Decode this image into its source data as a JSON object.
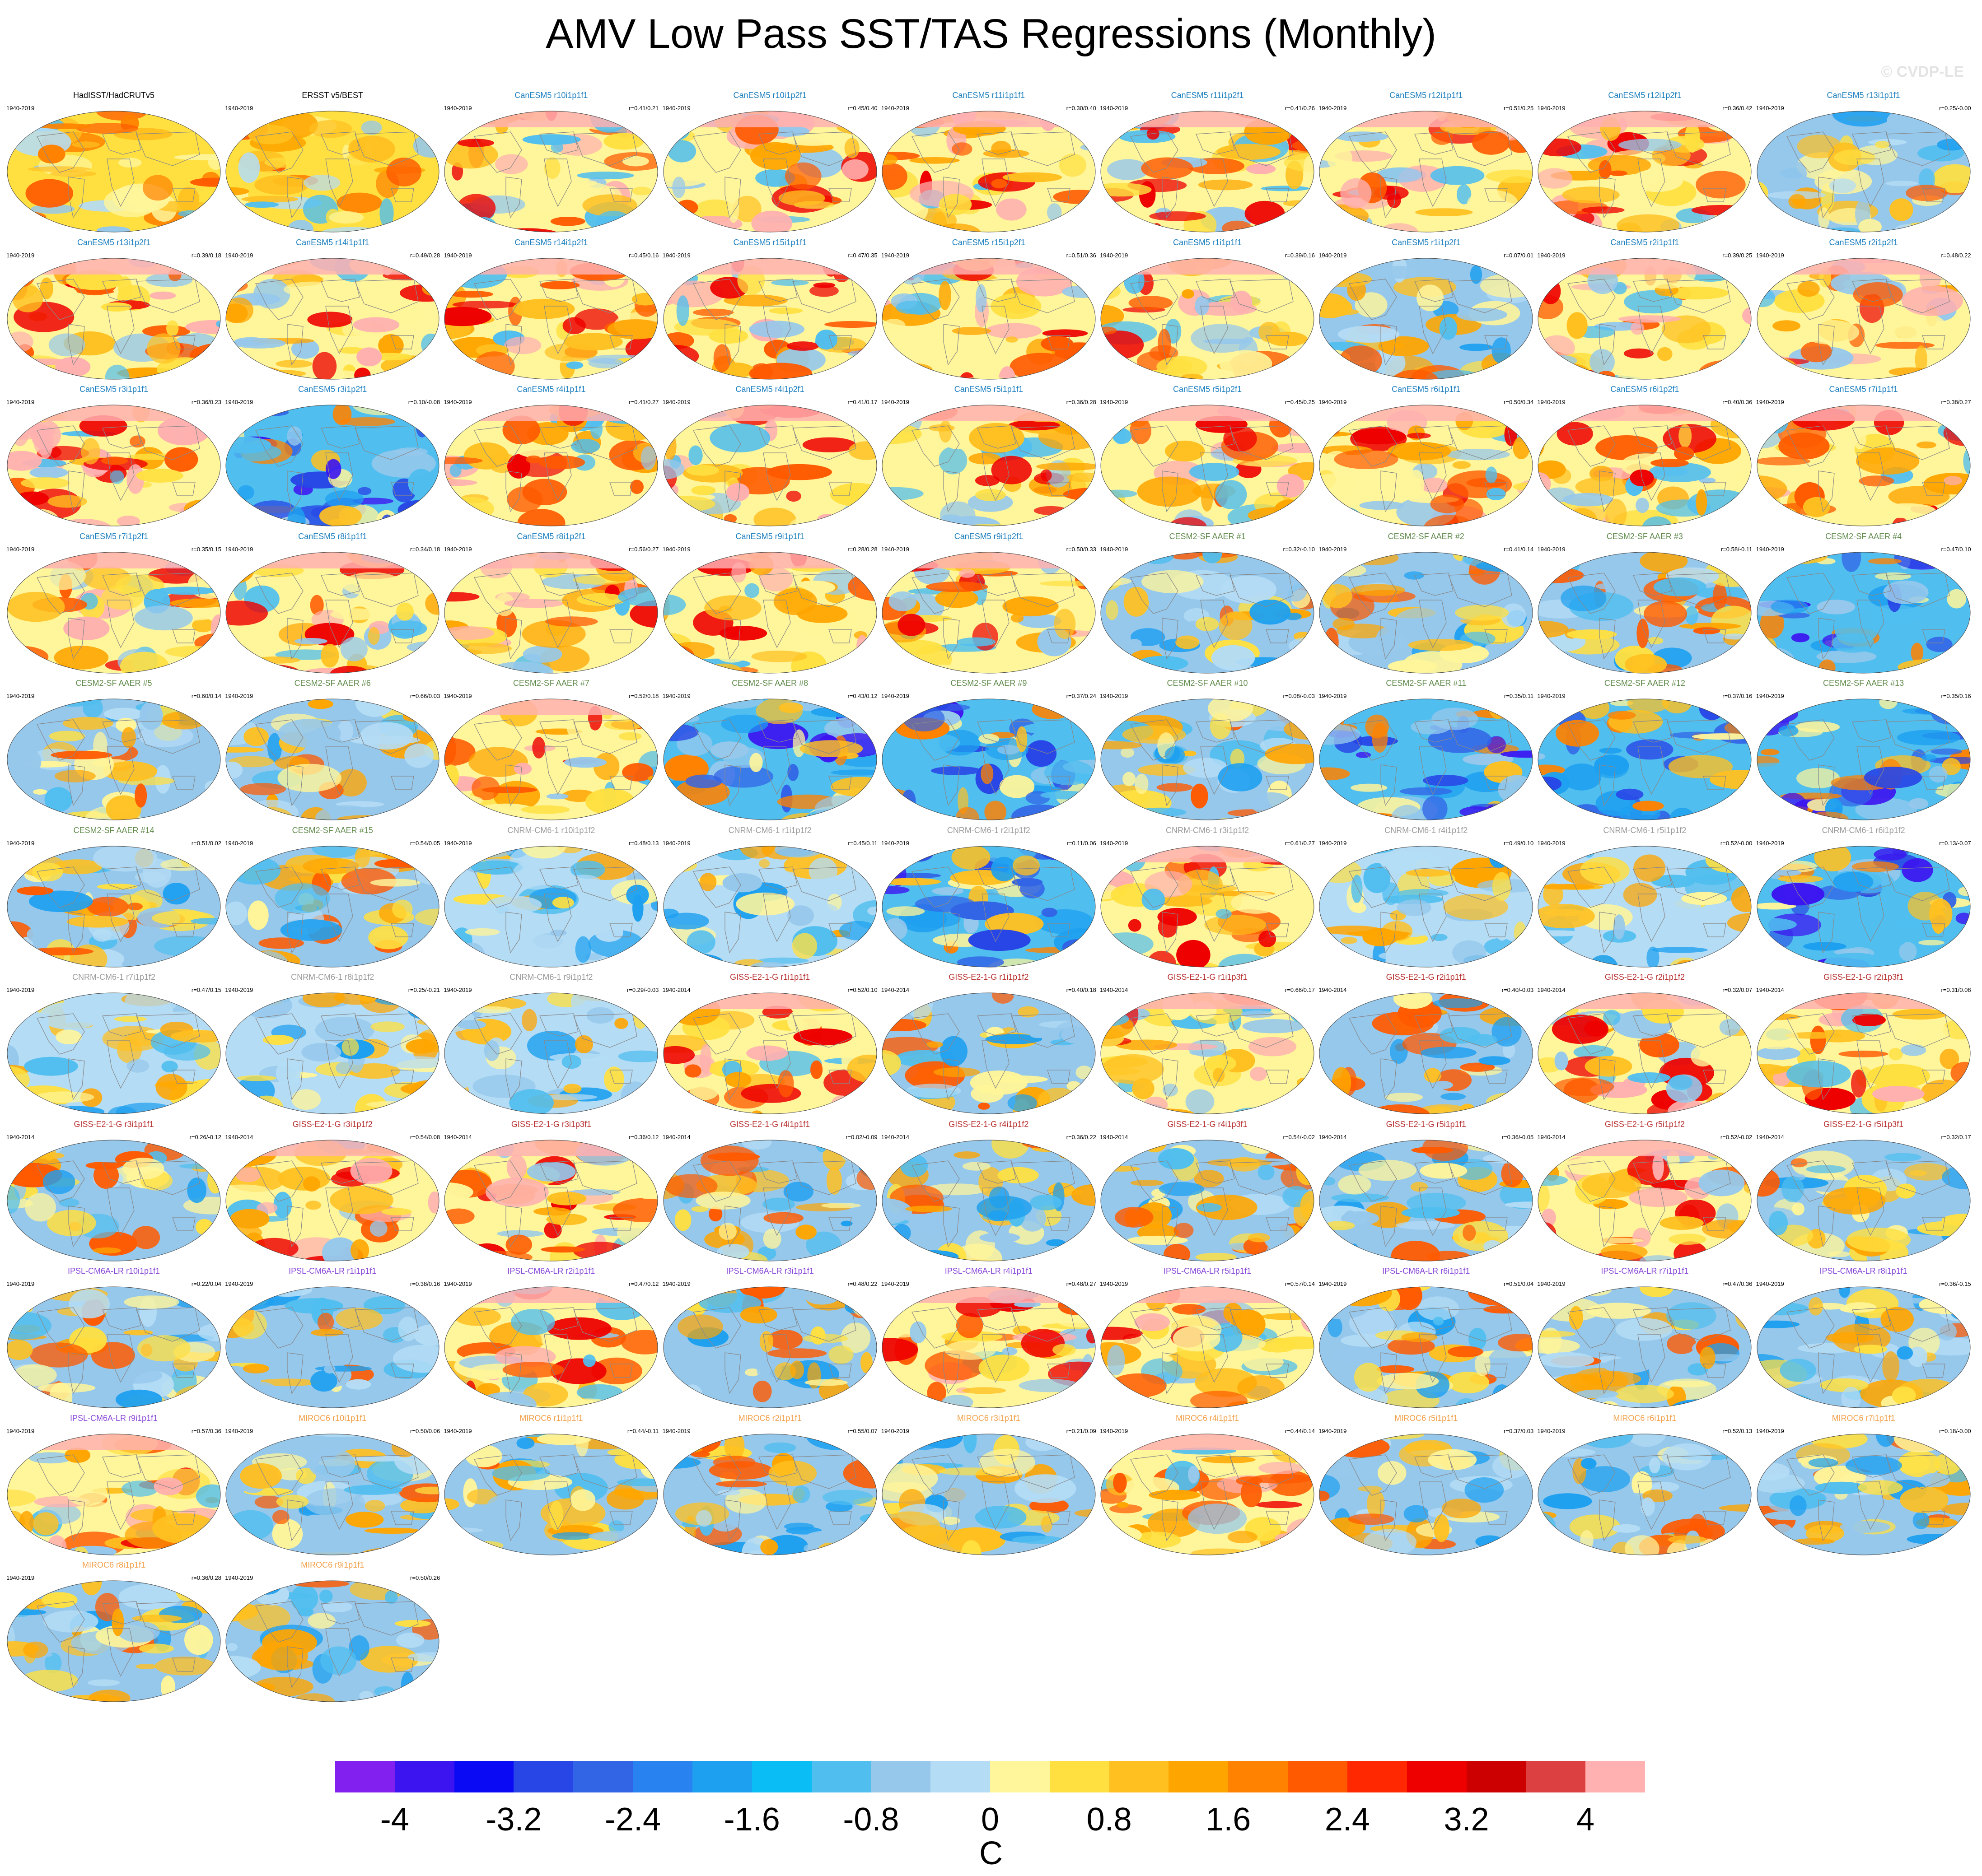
{
  "title": "AMV Low Pass SST/TAS Regressions (Monthly)",
  "watermark": "© CVDP-LE",
  "colors": {
    "obs_title": "#000000",
    "CanESM5": "#1c7fbf",
    "CESM2-SF AAER": "#5f8a4a",
    "CNRM-CM6-1": "#9a9a9a",
    "GISS-E2-1-G": "#b83030",
    "IPSL-CM6A-LR": "#8a48d8",
    "MIROC6": "#f2a04a"
  },
  "panels": [
    {
      "title": "HadISST/HadCRUTv5",
      "years": "1940-2019",
      "r": "",
      "model": "obs",
      "style": "obs"
    },
    {
      "title": "ERSST v5/BEST",
      "years": "1940-2019",
      "r": "",
      "model": "obs",
      "style": "obs"
    },
    {
      "title": "CanESM5 r10i1p1f1",
      "years": "1940-2019",
      "r": "r=0.41/0.21",
      "model": "CanESM5",
      "style": "warm"
    },
    {
      "title": "CanESM5 r10i1p2f1",
      "years": "1940-2019",
      "r": "r=0.45/0.40",
      "model": "CanESM5",
      "style": "warm"
    },
    {
      "title": "CanESM5 r11i1p1f1",
      "years": "1940-2019",
      "r": "r=0.30/0.40",
      "model": "CanESM5",
      "style": "warm"
    },
    {
      "title": "CanESM5 r11i1p2f1",
      "years": "1940-2019",
      "r": "r=0.41/0.26",
      "model": "CanESM5",
      "style": "warm"
    },
    {
      "title": "CanESM5 r12i1p1f1",
      "years": "1940-2019",
      "r": "r=0.51/0.25",
      "model": "CanESM5",
      "style": "warm"
    },
    {
      "title": "CanESM5 r12i1p2f1",
      "years": "1940-2019",
      "r": "r=0.36/0.42",
      "model": "CanESM5",
      "style": "warm"
    },
    {
      "title": "CanESM5 r13i1p1f1",
      "years": "1940-2019",
      "r": "r=0.25/-0.00",
      "model": "CanESM5",
      "style": "mixed"
    },
    {
      "title": "CanESM5 r13i1p2f1",
      "years": "1940-2019",
      "r": "r=0.39/0.18",
      "model": "CanESM5",
      "style": "warm"
    },
    {
      "title": "CanESM5 r14i1p1f1",
      "years": "1940-2019",
      "r": "r=0.49/0.28",
      "model": "CanESM5",
      "style": "warm"
    },
    {
      "title": "CanESM5 r14i1p2f1",
      "years": "1940-2019",
      "r": "r=0.45/0.16",
      "model": "CanESM5",
      "style": "warm"
    },
    {
      "title": "CanESM5 r15i1p1f1",
      "years": "1940-2019",
      "r": "r=0.47/0.35",
      "model": "CanESM5",
      "style": "warm"
    },
    {
      "title": "CanESM5 r15i1p2f1",
      "years": "1940-2019",
      "r": "r=0.51/0.36",
      "model": "CanESM5",
      "style": "warm"
    },
    {
      "title": "CanESM5 r1i1p1f1",
      "years": "1940-2019",
      "r": "r=0.39/0.16",
      "model": "CanESM5",
      "style": "warm"
    },
    {
      "title": "CanESM5 r1i1p2f1",
      "years": "1940-2019",
      "r": "r=0.07/0.01",
      "model": "CanESM5",
      "style": "mixed"
    },
    {
      "title": "CanESM5 r2i1p1f1",
      "years": "1940-2019",
      "r": "r=0.39/0.25",
      "model": "CanESM5",
      "style": "warm"
    },
    {
      "title": "CanESM5 r2i1p2f1",
      "years": "1940-2019",
      "r": "r=0.48/0.22",
      "model": "CanESM5",
      "style": "warm"
    },
    {
      "title": "CanESM5 r3i1p1f1",
      "years": "1940-2019",
      "r": "r=0.36/0.23",
      "model": "CanESM5",
      "style": "warm"
    },
    {
      "title": "CanESM5 r3i1p2f1",
      "years": "1940-2019",
      "r": "r=0.10/-0.08",
      "model": "CanESM5",
      "style": "cool"
    },
    {
      "title": "CanESM5 r4i1p1f1",
      "years": "1940-2019",
      "r": "r=0.41/0.27",
      "model": "CanESM5",
      "style": "warm"
    },
    {
      "title": "CanESM5 r4i1p2f1",
      "years": "1940-2019",
      "r": "r=0.41/0.17",
      "model": "CanESM5",
      "style": "warm"
    },
    {
      "title": "CanESM5 r5i1p1f1",
      "years": "1940-2019",
      "r": "r=0.36/0.28",
      "model": "CanESM5",
      "style": "warm"
    },
    {
      "title": "CanESM5 r5i1p2f1",
      "years": "1940-2019",
      "r": "r=0.45/0.25",
      "model": "CanESM5",
      "style": "warm"
    },
    {
      "title": "CanESM5 r6i1p1f1",
      "years": "1940-2019",
      "r": "r=0.50/0.34",
      "model": "CanESM5",
      "style": "warm"
    },
    {
      "title": "CanESM5 r6i1p2f1",
      "years": "1940-2019",
      "r": "r=0.40/0.36",
      "model": "CanESM5",
      "style": "warm"
    },
    {
      "title": "CanESM5 r7i1p1f1",
      "years": "1940-2019",
      "r": "r=0.38/0.27",
      "model": "CanESM5",
      "style": "warm"
    },
    {
      "title": "CanESM5 r7i1p2f1",
      "years": "1940-2019",
      "r": "r=0.35/0.15",
      "model": "CanESM5",
      "style": "warm"
    },
    {
      "title": "CanESM5 r8i1p1f1",
      "years": "1940-2019",
      "r": "r=0.34/0.18",
      "model": "CanESM5",
      "style": "warm"
    },
    {
      "title": "CanESM5 r8i1p2f1",
      "years": "1940-2019",
      "r": "r=0.56/0.27",
      "model": "CanESM5",
      "style": "warm"
    },
    {
      "title": "CanESM5 r9i1p1f1",
      "years": "1940-2019",
      "r": "r=0.28/0.28",
      "model": "CanESM5",
      "style": "warm"
    },
    {
      "title": "CanESM5 r9i1p2f1",
      "years": "1940-2019",
      "r": "r=0.50/0.33",
      "model": "CanESM5",
      "style": "warm"
    },
    {
      "title": "CESM2-SF AAER #1",
      "years": "1940-2019",
      "r": "r=0.32/-0.10",
      "model": "CESM2-SF AAER",
      "style": "mixed"
    },
    {
      "title": "CESM2-SF AAER #2",
      "years": "1940-2019",
      "r": "r=0.41/0.14",
      "model": "CESM2-SF AAER",
      "style": "mixed"
    },
    {
      "title": "CESM2-SF AAER #3",
      "years": "1940-2019",
      "r": "r=0.58/-0.11",
      "model": "CESM2-SF AAER",
      "style": "mixed"
    },
    {
      "title": "CESM2-SF AAER #4",
      "years": "1940-2019",
      "r": "r=0.47/0.10",
      "model": "CESM2-SF AAER",
      "style": "cool"
    },
    {
      "title": "CESM2-SF AAER #5",
      "years": "1940-2019",
      "r": "r=0.60/0.14",
      "model": "CESM2-SF AAER",
      "style": "mixed"
    },
    {
      "title": "CESM2-SF AAER #6",
      "years": "1940-2019",
      "r": "r=0.66/0.03",
      "model": "CESM2-SF AAER",
      "style": "mixed"
    },
    {
      "title": "CESM2-SF AAER #7",
      "years": "1940-2019",
      "r": "r=0.52/0.18",
      "model": "CESM2-SF AAER",
      "style": "warm"
    },
    {
      "title": "CESM2-SF AAER #8",
      "years": "1940-2019",
      "r": "r=0.43/0.12",
      "model": "CESM2-SF AAER",
      "style": "cool"
    },
    {
      "title": "CESM2-SF AAER #9",
      "years": "1940-2019",
      "r": "r=0.37/0.24",
      "model": "CESM2-SF AAER",
      "style": "cool"
    },
    {
      "title": "CESM2-SF AAER #10",
      "years": "1940-2019",
      "r": "r=0.08/-0.03",
      "model": "CESM2-SF AAER",
      "style": "mixed"
    },
    {
      "title": "CESM2-SF AAER #11",
      "years": "1940-2019",
      "r": "r=0.35/0.11",
      "model": "CESM2-SF AAER",
      "style": "cool"
    },
    {
      "title": "CESM2-SF AAER #12",
      "years": "1940-2019",
      "r": "r=0.37/0.16",
      "model": "CESM2-SF AAER",
      "style": "cool"
    },
    {
      "title": "CESM2-SF AAER #13",
      "years": "1940-2019",
      "r": "r=0.35/0.16",
      "model": "CESM2-SF AAER",
      "style": "cool"
    },
    {
      "title": "CESM2-SF AAER #14",
      "years": "1940-2019",
      "r": "r=0.51/0.02",
      "model": "CESM2-SF AAER",
      "style": "mixed"
    },
    {
      "title": "CESM2-SF AAER #15",
      "years": "1940-2019",
      "r": "r=0.54/0.05",
      "model": "CESM2-SF AAER",
      "style": "mixed"
    },
    {
      "title": "CNRM-CM6-1 r10i1p1f2",
      "years": "1940-2019",
      "r": "r=0.48/0.13",
      "model": "CNRM-CM6-1",
      "style": "pale"
    },
    {
      "title": "CNRM-CM6-1 r1i1p1f2",
      "years": "1940-2019",
      "r": "r=0.45/0.11",
      "model": "CNRM-CM6-1",
      "style": "pale"
    },
    {
      "title": "CNRM-CM6-1 r2i1p1f2",
      "years": "1940-2019",
      "r": "r=0.11/0.06",
      "model": "CNRM-CM6-1",
      "style": "cool"
    },
    {
      "title": "CNRM-CM6-1 r3i1p1f2",
      "years": "1940-2019",
      "r": "r=0.61/0.27",
      "model": "CNRM-CM6-1",
      "style": "warm"
    },
    {
      "title": "CNRM-CM6-1 r4i1p1f2",
      "years": "1940-2019",
      "r": "r=0.49/0.10",
      "model": "CNRM-CM6-1",
      "style": "pale"
    },
    {
      "title": "CNRM-CM6-1 r5i1p1f2",
      "years": "1940-2019",
      "r": "r=0.52/-0.00",
      "model": "CNRM-CM6-1",
      "style": "pale"
    },
    {
      "title": "CNRM-CM6-1 r6i1p1f2",
      "years": "1940-2019",
      "r": "r=0.13/-0.07",
      "model": "CNRM-CM6-1",
      "style": "cool"
    },
    {
      "title": "CNRM-CM6-1 r7i1p1f2",
      "years": "1940-2019",
      "r": "r=0.47/0.15",
      "model": "CNRM-CM6-1",
      "style": "pale"
    },
    {
      "title": "CNRM-CM6-1 r8i1p1f2",
      "years": "1940-2019",
      "r": "r=0.25/-0.21",
      "model": "CNRM-CM6-1",
      "style": "pale"
    },
    {
      "title": "CNRM-CM6-1 r9i1p1f2",
      "years": "1940-2019",
      "r": "r=0.29/-0.03",
      "model": "CNRM-CM6-1",
      "style": "pale"
    },
    {
      "title": "GISS-E2-1-G r1i1p1f1",
      "years": "1940-2014",
      "r": "r=0.52/0.10",
      "model": "GISS-E2-1-G",
      "style": "warm"
    },
    {
      "title": "GISS-E2-1-G r1i1p1f2",
      "years": "1940-2014",
      "r": "r=0.40/0.18",
      "model": "GISS-E2-1-G",
      "style": "mixed"
    },
    {
      "title": "GISS-E2-1-G r1i1p3f1",
      "years": "1940-2014",
      "r": "r=0.66/0.17",
      "model": "GISS-E2-1-G",
      "style": "warm"
    },
    {
      "title": "GISS-E2-1-G r2i1p1f1",
      "years": "1940-2014",
      "r": "r=0.40/-0.03",
      "model": "GISS-E2-1-G",
      "style": "mixed"
    },
    {
      "title": "GISS-E2-1-G r2i1p1f2",
      "years": "1940-2014",
      "r": "r=0.32/0.07",
      "model": "GISS-E2-1-G",
      "style": "warm"
    },
    {
      "title": "GISS-E2-1-G r2i1p3f1",
      "years": "1940-2014",
      "r": "r=0.31/0.08",
      "model": "GISS-E2-1-G",
      "style": "warm"
    },
    {
      "title": "GISS-E2-1-G r3i1p1f1",
      "years": "1940-2014",
      "r": "r=0.26/-0.12",
      "model": "GISS-E2-1-G",
      "style": "mixed"
    },
    {
      "title": "GISS-E2-1-G r3i1p1f2",
      "years": "1940-2014",
      "r": "r=0.54/0.08",
      "model": "GISS-E2-1-G",
      "style": "warm"
    },
    {
      "title": "GISS-E2-1-G r3i1p3f1",
      "years": "1940-2014",
      "r": "r=0.36/0.12",
      "model": "GISS-E2-1-G",
      "style": "warm"
    },
    {
      "title": "GISS-E2-1-G r4i1p1f1",
      "years": "1940-2014",
      "r": "r=0.02/-0.09",
      "model": "GISS-E2-1-G",
      "style": "mixed"
    },
    {
      "title": "GISS-E2-1-G r4i1p1f2",
      "years": "1940-2014",
      "r": "r=0.36/0.22",
      "model": "GISS-E2-1-G",
      "style": "mixed"
    },
    {
      "title": "GISS-E2-1-G r4i1p3f1",
      "years": "1940-2014",
      "r": "r=0.54/-0.02",
      "model": "GISS-E2-1-G",
      "style": "mixed"
    },
    {
      "title": "GISS-E2-1-G r5i1p1f1",
      "years": "1940-2014",
      "r": "r=0.36/-0.05",
      "model": "GISS-E2-1-G",
      "style": "mixed"
    },
    {
      "title": "GISS-E2-1-G r5i1p1f2",
      "years": "1940-2014",
      "r": "r=0.52/-0.02",
      "model": "GISS-E2-1-G",
      "style": "warm"
    },
    {
      "title": "GISS-E2-1-G r5i1p3f1",
      "years": "1940-2014",
      "r": "r=0.32/0.17",
      "model": "GISS-E2-1-G",
      "style": "mixed"
    },
    {
      "title": "IPSL-CM6A-LR r10i1p1f1",
      "years": "1940-2019",
      "r": "r=0.22/0.04",
      "model": "IPSL-CM6A-LR",
      "style": "mixed"
    },
    {
      "title": "IPSL-CM6A-LR r1i1p1f1",
      "years": "1940-2019",
      "r": "r=0.38/0.16",
      "model": "IPSL-CM6A-LR",
      "style": "mixed"
    },
    {
      "title": "IPSL-CM6A-LR r2i1p1f1",
      "years": "1940-2019",
      "r": "r=0.47/0.12",
      "model": "IPSL-CM6A-LR",
      "style": "warm"
    },
    {
      "title": "IPSL-CM6A-LR r3i1p1f1",
      "years": "1940-2019",
      "r": "r=0.48/0.22",
      "model": "IPSL-CM6A-LR",
      "style": "mixed"
    },
    {
      "title": "IPSL-CM6A-LR r4i1p1f1",
      "years": "1940-2019",
      "r": "r=0.48/0.27",
      "model": "IPSL-CM6A-LR",
      "style": "warm"
    },
    {
      "title": "IPSL-CM6A-LR r5i1p1f1",
      "years": "1940-2019",
      "r": "r=0.57/0.14",
      "model": "IPSL-CM6A-LR",
      "style": "warm"
    },
    {
      "title": "IPSL-CM6A-LR r6i1p1f1",
      "years": "1940-2019",
      "r": "r=0.51/0.04",
      "model": "IPSL-CM6A-LR",
      "style": "mixed"
    },
    {
      "title": "IPSL-CM6A-LR r7i1p1f1",
      "years": "1940-2019",
      "r": "r=0.47/0.36",
      "model": "IPSL-CM6A-LR",
      "style": "mixed"
    },
    {
      "title": "IPSL-CM6A-LR r8i1p1f1",
      "years": "1940-2019",
      "r": "r=0.36/-0.15",
      "model": "IPSL-CM6A-LR",
      "style": "mixed"
    },
    {
      "title": "IPSL-CM6A-LR r9i1p1f1",
      "years": "1940-2019",
      "r": "r=0.57/0.36",
      "model": "IPSL-CM6A-LR",
      "style": "warm"
    },
    {
      "title": "MIROC6 r10i1p1f1",
      "years": "1940-2019",
      "r": "r=0.50/0.06",
      "model": "MIROC6",
      "style": "mixed"
    },
    {
      "title": "MIROC6 r1i1p1f1",
      "years": "1940-2019",
      "r": "r=0.44/-0.11",
      "model": "MIROC6",
      "style": "mixed"
    },
    {
      "title": "MIROC6 r2i1p1f1",
      "years": "1940-2019",
      "r": "r=0.55/0.07",
      "model": "MIROC6",
      "style": "mixed"
    },
    {
      "title": "MIROC6 r3i1p1f1",
      "years": "1940-2019",
      "r": "r=0.21/0.09",
      "model": "MIROC6",
      "style": "mixed"
    },
    {
      "title": "MIROC6 r4i1p1f1",
      "years": "1940-2019",
      "r": "r=0.44/0.14",
      "model": "MIROC6",
      "style": "warm"
    },
    {
      "title": "MIROC6 r5i1p1f1",
      "years": "1940-2019",
      "r": "r=0.37/0.03",
      "model": "MIROC6",
      "style": "mixed"
    },
    {
      "title": "MIROC6 r6i1p1f1",
      "years": "1940-2019",
      "r": "r=0.52/0.13",
      "model": "MIROC6",
      "style": "mixed"
    },
    {
      "title": "MIROC6 r7i1p1f1",
      "years": "1940-2019",
      "r": "r=0.18/-0.00",
      "model": "MIROC6",
      "style": "mixed"
    },
    {
      "title": "MIROC6 r8i1p1f1",
      "years": "1940-2019",
      "r": "r=0.36/0.28",
      "model": "MIROC6",
      "style": "mixed"
    },
    {
      "title": "MIROC6 r9i1p1f1",
      "years": "1940-2019",
      "r": "r=0.50/0.26",
      "model": "MIROC6",
      "style": "mixed"
    }
  ],
  "colorbar": {
    "colors": [
      "#8220f0",
      "#3c14f0",
      "#0a0af5",
      "#2846e6",
      "#3264e6",
      "#2882f0",
      "#1ea0f0",
      "#0abef5",
      "#50beef",
      "#96c8ec",
      "#b4dcf5",
      "#fff59a",
      "#ffe040",
      "#ffc020",
      "#ffa500",
      "#ff8200",
      "#ff5a00",
      "#ff2800",
      "#ee0000",
      "#cc0000",
      "#dd4040",
      "#ffb0b0"
    ],
    "labels": [
      "-4",
      "-3.2",
      "-2.4",
      "-1.6",
      "-0.8",
      "0",
      "0.8",
      "1.6",
      "2.4",
      "3.2",
      "4"
    ],
    "unit": "C"
  }
}
